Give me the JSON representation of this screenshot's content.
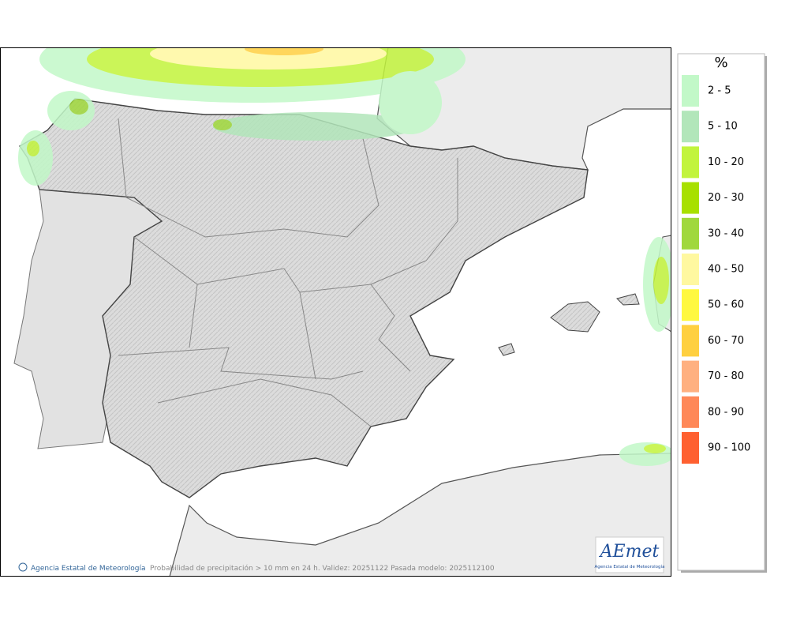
{
  "legend": {
    "title": "%",
    "entries": [
      {
        "label": "2 - 5",
        "color": "#c2f8c8"
      },
      {
        "label": "5 - 10",
        "color": "#b2e6ba"
      },
      {
        "label": "10 - 20",
        "color": "#c2f43c"
      },
      {
        "label": "20 - 30",
        "color": "#a8e000"
      },
      {
        "label": "30 - 40",
        "color": "#a0d83c"
      },
      {
        "label": "40 - 50",
        "color": "#fff8a0"
      },
      {
        "label": "50 - 60",
        "color": "#fff840"
      },
      {
        "label": "60 - 70",
        "color": "#ffd040"
      },
      {
        "label": "70 - 80",
        "color": "#ffb080"
      },
      {
        "label": "80 - 90",
        "color": "#ff8858"
      },
      {
        "label": "90 - 100",
        "color": "#ff6030"
      }
    ]
  },
  "footer": {
    "credit": "Agencia Estatal de Meteorología",
    "caption": "Probabilidad de precipitación > 10 mm en 24 h. Validez: 20251122 Pasada modelo: 2025112100"
  },
  "logo": {
    "name": "AEmet",
    "subtitle": "Agencia Estatal de Meteorología"
  }
}
